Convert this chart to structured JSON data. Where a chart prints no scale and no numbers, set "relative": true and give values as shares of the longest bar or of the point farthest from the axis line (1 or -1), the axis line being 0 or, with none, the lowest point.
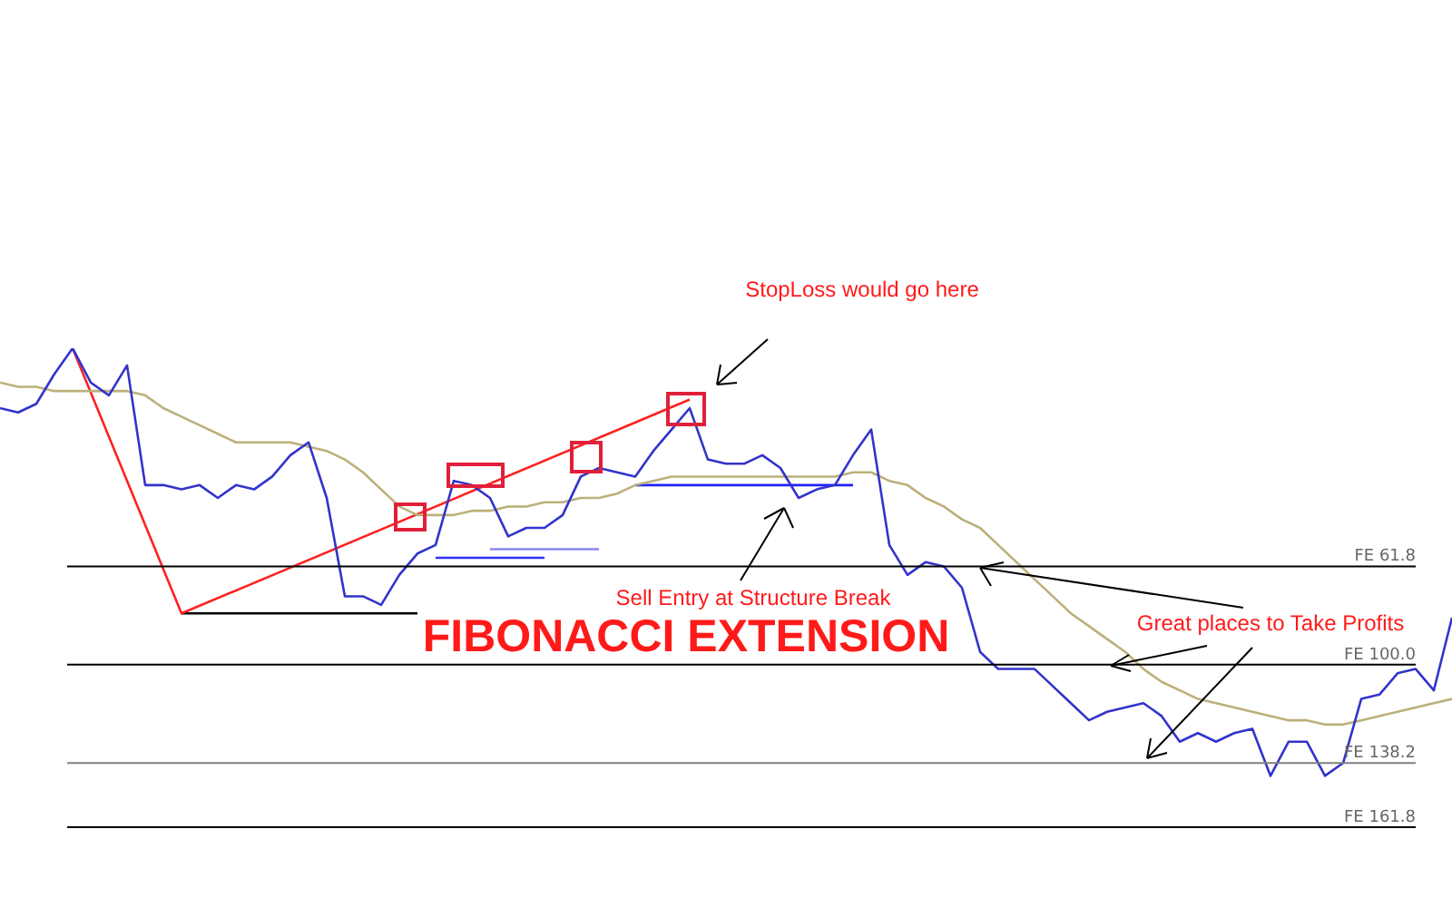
{
  "chart_data": {
    "type": "line",
    "title": "FIBONACCI EXTENSION",
    "relative": true,
    "legend": false,
    "marker": "none",
    "line_style": "solid",
    "categories": [
      null,
      null,
      null,
      null,
      null,
      null,
      null,
      null,
      null,
      null,
      null,
      null,
      null,
      null,
      null,
      null,
      null,
      null,
      null,
      null,
      null,
      null,
      null,
      null,
      null,
      null,
      null,
      null,
      null,
      null,
      null,
      null,
      null,
      null,
      null,
      null,
      null,
      null,
      null,
      null,
      null,
      null,
      null,
      null,
      null,
      null,
      null,
      null,
      null,
      null,
      null,
      null,
      null,
      null,
      null,
      null,
      null,
      null,
      null,
      null,
      null,
      null,
      null,
      null,
      null,
      null,
      null,
      null,
      null,
      null,
      null,
      null,
      null,
      null,
      null,
      null,
      null,
      null,
      null,
      null,
      null
    ],
    "series": [
      {
        "color": "#3333cc",
        "values": [
          0.86,
          0.85,
          0.87,
          0.94,
          1,
          0.92,
          0.89,
          0.96,
          0.68,
          0.68,
          0.67,
          0.68,
          0.65,
          0.68,
          0.67,
          0.7,
          0.75,
          0.78,
          0.65,
          0.42,
          0.42,
          0.4,
          0.47,
          0.52,
          0.54,
          0.69,
          0.68,
          0.65,
          0.56,
          0.58,
          0.58,
          0.61,
          0.7,
          0.72,
          0.71,
          0.7,
          0.76,
          0.81,
          0.86,
          0.74,
          0.73,
          0.73,
          0.75,
          0.72,
          0.65,
          0.67,
          0.68,
          0.75,
          0.81,
          0.54,
          0.47,
          0.5,
          0.49,
          0.44,
          0.29,
          0.25,
          0.25,
          0.25,
          0.21,
          0.17,
          0.13,
          0.15,
          0.16,
          0.17,
          0.14,
          0.08,
          0.1,
          0.08,
          0.1,
          0.11,
          0,
          0.08,
          0.08,
          0,
          0.03,
          0.18,
          0.19,
          0.24,
          0.25,
          0.2,
          0.37
        ]
      },
      {
        "color": "#bcb07a",
        "values": [
          0.92,
          0.91,
          0.91,
          0.9,
          0.9,
          0.9,
          0.9,
          0.9,
          0.89,
          0.86,
          0.84,
          0.82,
          0.8,
          0.78,
          0.78,
          0.78,
          0.78,
          0.77,
          0.76,
          0.74,
          0.71,
          0.67,
          0.63,
          0.61,
          0.61,
          0.61,
          0.62,
          0.62,
          0.63,
          0.63,
          0.64,
          0.64,
          0.65,
          0.65,
          0.66,
          0.68,
          0.69,
          0.7,
          0.7,
          0.7,
          0.7,
          0.7,
          0.7,
          0.7,
          0.7,
          0.7,
          0.7,
          0.71,
          0.71,
          0.69,
          0.68,
          0.65,
          0.63,
          0.6,
          0.58,
          0.54,
          0.5,
          0.46,
          0.42,
          0.38,
          0.35,
          0.32,
          0.29,
          0.25,
          0.22,
          0.2,
          0.18,
          0.17,
          0.16,
          0.15,
          0.14,
          0.13,
          0.13,
          0.12,
          0.12,
          0.13,
          0.14,
          0.15,
          0.16,
          0.17,
          0.18
        ]
      },
      {
        "color": "#ff2020",
        "values": [
          null,
          null,
          null,
          null,
          1,
          null,
          null,
          null,
          null,
          null,
          0.38,
          null,
          null,
          null,
          null,
          null,
          null,
          null,
          null,
          null,
          null,
          null,
          null,
          null,
          null,
          null,
          null,
          null,
          null,
          null,
          null,
          null,
          null,
          null,
          null,
          null,
          null,
          null,
          0.88,
          null,
          null,
          null,
          null,
          null,
          null,
          null,
          null,
          null,
          null,
          null,
          null,
          null,
          null,
          null,
          null,
          null,
          null,
          null,
          null,
          null,
          null,
          null,
          null,
          null,
          null,
          null,
          null,
          null,
          null,
          null,
          null,
          null,
          null,
          null,
          null,
          null,
          null,
          null,
          null,
          null,
          null
        ]
      },
      {
        "color": "#000000",
        "values": [
          null,
          null,
          null,
          null,
          null,
          null,
          null,
          null,
          null,
          null,
          0.38,
          null,
          null,
          null,
          null,
          null,
          null,
          null,
          null,
          null,
          null,
          null,
          null,
          0.38,
          null,
          null,
          null,
          null,
          null,
          null,
          null,
          null,
          null,
          null,
          null,
          null,
          null,
          null,
          null,
          null,
          null,
          null,
          null,
          null,
          null,
          null,
          null,
          null,
          null,
          null,
          null,
          null,
          null,
          null,
          null,
          null,
          null,
          null,
          null,
          null,
          null,
          null,
          null,
          null,
          null,
          null,
          null,
          null,
          null,
          null,
          null,
          null,
          null,
          null,
          null,
          null,
          null,
          null,
          null,
          null,
          null
        ]
      },
      {
        "color": "#3333ff",
        "values": [
          null,
          null,
          null,
          null,
          null,
          null,
          null,
          null,
          null,
          null,
          null,
          null,
          null,
          null,
          null,
          null,
          null,
          null,
          null,
          null,
          null,
          null,
          null,
          null,
          0.51,
          null,
          null,
          null,
          null,
          null,
          0.51,
          null,
          null,
          null,
          null,
          null,
          null,
          null,
          null,
          null,
          null,
          null,
          null,
          null,
          null,
          null,
          null,
          null,
          null,
          null,
          null,
          null,
          null,
          null,
          null,
          null,
          null,
          null,
          null,
          null,
          null,
          null,
          null,
          null,
          null,
          null,
          null,
          null,
          null,
          null,
          null,
          null,
          null,
          null,
          null,
          null,
          null,
          null,
          null,
          null,
          null
        ]
      },
      {
        "color": "#8888ee",
        "values": [
          null,
          null,
          null,
          null,
          null,
          null,
          null,
          null,
          null,
          null,
          null,
          null,
          null,
          null,
          null,
          null,
          null,
          null,
          null,
          null,
          null,
          null,
          null,
          null,
          null,
          null,
          null,
          0.53,
          null,
          null,
          null,
          null,
          null,
          0.53,
          null,
          null,
          null,
          null,
          null,
          null,
          null,
          null,
          null,
          null,
          null,
          null,
          null,
          null,
          null,
          null,
          null,
          null,
          null,
          null,
          null,
          null,
          null,
          null,
          null,
          null,
          null,
          null,
          null,
          null,
          null,
          null,
          null,
          null,
          null,
          null,
          null,
          null,
          null,
          null,
          null,
          null,
          null,
          null,
          null,
          null,
          null
        ]
      },
      {
        "color": "#2222ff",
        "values": [
          null,
          null,
          null,
          null,
          null,
          null,
          null,
          null,
          null,
          null,
          null,
          null,
          null,
          null,
          null,
          null,
          null,
          null,
          null,
          null,
          null,
          null,
          null,
          null,
          null,
          null,
          null,
          null,
          null,
          null,
          null,
          null,
          null,
          null,
          null,
          0.68,
          null,
          null,
          null,
          null,
          null,
          null,
          null,
          null,
          null,
          null,
          null,
          0.68,
          null,
          null,
          null,
          null,
          null,
          null,
          null,
          null,
          null,
          null,
          null,
          null,
          null,
          null,
          null,
          null,
          null,
          null,
          null,
          null,
          null,
          null,
          null,
          null,
          null,
          null,
          null,
          null,
          null,
          null,
          null,
          null,
          null
        ]
      }
    ],
    "ref_lines": [
      {
        "axis": "y",
        "value": 0.49,
        "label": "FE 61.8",
        "color": "#000000"
      },
      {
        "axis": "y",
        "value": 0.26,
        "label": "FE 100.0",
        "color": "#000000"
      },
      {
        "axis": "y",
        "value": 0.03,
        "label": "FE 138.2",
        "color": "#808080"
      },
      {
        "axis": "y",
        "value": -0.12,
        "label": "FE 161.8",
        "color": "#000000"
      }
    ],
    "annotations": [
      "StopLoss would go here",
      "Sell Entry at Structure Break",
      "Great places to Take Profits"
    ]
  }
}
